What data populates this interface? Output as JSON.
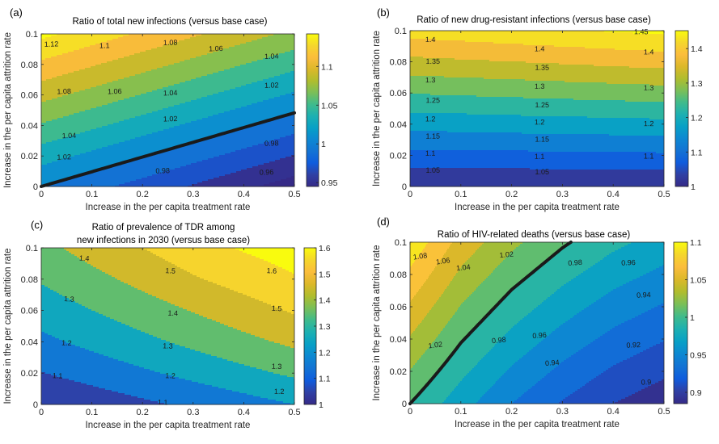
{
  "figure": {
    "panels": [
      "a",
      "b",
      "c",
      "d"
    ]
  },
  "colors": {
    "colormap_name": "parula",
    "colormap": [
      "#352a87",
      "#3040a4",
      "#0f5cdd",
      "#1373d4",
      "#0d88d2",
      "#08a0c6",
      "#1cb0b2",
      "#3fbb8c",
      "#7abf58",
      "#b0bd2e",
      "#dcb82a",
      "#fbbd3c",
      "#f5d62c",
      "#f9fb0e"
    ],
    "highlight_line": "#1a1a1a",
    "axis": "#262626"
  },
  "chart_data": [
    {
      "id": "a",
      "type": "heatmap",
      "subtype": "filled-contour",
      "panel_letter": "(a)",
      "title": "Ratio of total new infections (versus base case)",
      "title_lines": [
        "Ratio of total new infections (versus base case)"
      ],
      "xlabel": "Increase in the per capita treatment rate",
      "ylabel": "Increase in the per capita attrition rate",
      "xlim": [
        0,
        0.5
      ],
      "ylim": [
        0,
        0.1
      ],
      "xticks": [
        "0",
        "0.1",
        "0.2",
        "0.3",
        "0.4",
        "0.5"
      ],
      "yticks": [
        "0",
        "0.02",
        "0.04",
        "0.06",
        "0.08",
        "0.1"
      ],
      "grid": false,
      "x": [
        0,
        0.1,
        0.2,
        0.3,
        0.4,
        0.5
      ],
      "y": [
        0,
        0.02,
        0.04,
        0.06,
        0.08,
        0.1
      ],
      "z": [
        [
          1.0,
          0.986,
          0.972,
          0.958,
          0.944,
          0.93
        ],
        [
          1.029,
          1.015,
          1.001,
          0.987,
          0.973,
          0.959
        ],
        [
          1.058,
          1.044,
          1.03,
          1.016,
          1.002,
          0.988
        ],
        [
          1.087,
          1.073,
          1.059,
          1.045,
          1.031,
          1.017
        ],
        [
          1.116,
          1.102,
          1.088,
          1.074,
          1.06,
          1.046
        ],
        [
          1.145,
          1.131,
          1.117,
          1.103,
          1.089,
          1.075
        ]
      ],
      "levels_start": 0.9,
      "levels_step": 0.02,
      "highlight_level": 1.0,
      "clim": [
        0.945,
        1.142
      ],
      "colorbar_ticks": [
        "0.95",
        "1",
        "1.05",
        "1.1"
      ],
      "colorbar_tick_values": [
        0.95,
        1.0,
        1.05,
        1.1
      ],
      "contour_labels": [
        {
          "text": "1.12",
          "x": 0.02,
          "y": 0.093
        },
        {
          "text": "1.1",
          "x": 0.125,
          "y": 0.092
        },
        {
          "text": "1.08",
          "x": 0.255,
          "y": 0.094
        },
        {
          "text": "1.06",
          "x": 0.345,
          "y": 0.09
        },
        {
          "text": "1.04",
          "x": 0.455,
          "y": 0.085
        },
        {
          "text": "1.08",
          "x": 0.045,
          "y": 0.062
        },
        {
          "text": "1.06",
          "x": 0.145,
          "y": 0.062
        },
        {
          "text": "1.04",
          "x": 0.255,
          "y": 0.061
        },
        {
          "text": "1.02",
          "x": 0.455,
          "y": 0.066
        },
        {
          "text": "1.04",
          "x": 0.055,
          "y": 0.033
        },
        {
          "text": "1.02",
          "x": 0.255,
          "y": 0.044
        },
        {
          "text": "1.02",
          "x": 0.045,
          "y": 0.019
        },
        {
          "text": "0.98",
          "x": 0.455,
          "y": 0.028
        },
        {
          "text": "0.98",
          "x": 0.24,
          "y": 0.01
        },
        {
          "text": "0.96",
          "x": 0.445,
          "y": 0.009
        }
      ]
    },
    {
      "id": "b",
      "type": "heatmap",
      "subtype": "filled-contour",
      "panel_letter": "(b)",
      "title": "Ratio of new drug-resistant infections (versus base case)",
      "title_lines": [
        "Ratio of new drug-resistant infections (versus base case)"
      ],
      "xlabel": "Increase in the per capita treatment rate",
      "ylabel": "Increase in the per capita attrition rate",
      "xlim": [
        0,
        0.5
      ],
      "ylim": [
        0,
        0.1
      ],
      "xticks": [
        "0",
        "0.1",
        "0.2",
        "0.3",
        "0.4",
        "0.5"
      ],
      "yticks": [
        "0",
        "0.02",
        "0.04",
        "0.06",
        "0.08",
        "0.1"
      ],
      "grid": false,
      "x": [
        0,
        0.1,
        0.2,
        0.3,
        0.4,
        0.5
      ],
      "y": [
        0,
        0.02,
        0.04,
        0.06,
        0.08,
        0.1
      ],
      "z": [
        [
          1.0,
          1.0,
          1.0,
          1.0,
          1.0,
          1.0
        ],
        [
          1.084,
          1.086,
          1.087,
          1.089,
          1.091,
          1.092
        ],
        [
          1.168,
          1.171,
          1.175,
          1.178,
          1.181,
          1.185
        ],
        [
          1.252,
          1.257,
          1.262,
          1.267,
          1.272,
          1.277
        ],
        [
          1.336,
          1.343,
          1.349,
          1.356,
          1.363,
          1.37
        ],
        [
          1.42,
          1.428,
          1.437,
          1.445,
          1.454,
          1.462
        ]
      ],
      "levels_start": 1.0,
      "levels_step": 0.05,
      "highlight_level": null,
      "clim": [
        1.0,
        1.452
      ],
      "colorbar_ticks": [
        "1",
        "1.1",
        "1.2",
        "1.3",
        "1.4"
      ],
      "colorbar_tick_values": [
        1.0,
        1.1,
        1.2,
        1.3,
        1.4
      ],
      "contour_labels": [
        {
          "text": "1.45",
          "x": 0.455,
          "y": 0.099
        },
        {
          "text": "1.4",
          "x": 0.04,
          "y": 0.094
        },
        {
          "text": "1.4",
          "x": 0.255,
          "y": 0.088
        },
        {
          "text": "1.4",
          "x": 0.47,
          "y": 0.086
        },
        {
          "text": "1.35",
          "x": 0.045,
          "y": 0.08
        },
        {
          "text": "1.35",
          "x": 0.26,
          "y": 0.076
        },
        {
          "text": "1.3",
          "x": 0.04,
          "y": 0.068
        },
        {
          "text": "1.3",
          "x": 0.255,
          "y": 0.064
        },
        {
          "text": "1.3",
          "x": 0.47,
          "y": 0.063
        },
        {
          "text": "1.25",
          "x": 0.045,
          "y": 0.055
        },
        {
          "text": "1.25",
          "x": 0.26,
          "y": 0.052
        },
        {
          "text": "1.2",
          "x": 0.04,
          "y": 0.043
        },
        {
          "text": "1.2",
          "x": 0.255,
          "y": 0.041
        },
        {
          "text": "1.2",
          "x": 0.47,
          "y": 0.04
        },
        {
          "text": "1.15",
          "x": 0.045,
          "y": 0.032
        },
        {
          "text": "1.15",
          "x": 0.26,
          "y": 0.03
        },
        {
          "text": "1.1",
          "x": 0.04,
          "y": 0.021
        },
        {
          "text": "1.1",
          "x": 0.255,
          "y": 0.019
        },
        {
          "text": "1.1",
          "x": 0.47,
          "y": 0.019
        },
        {
          "text": "1.05",
          "x": 0.045,
          "y": 0.01
        },
        {
          "text": "1.05",
          "x": 0.26,
          "y": 0.009
        }
      ]
    },
    {
      "id": "c",
      "type": "heatmap",
      "subtype": "filled-contour",
      "panel_letter": "(c)",
      "title": "Ratio of prevalence of TDR among new infections in 2030 (versus base case)",
      "title_lines": [
        "Ratio of prevalence of TDR among",
        "new infections in 2030 (versus base case)"
      ],
      "xlabel": "Increase in the per capita treatment rate",
      "ylabel": "Increase in the per capita attrition rate",
      "xlim": [
        0,
        0.5
      ],
      "ylim": [
        0,
        0.1
      ],
      "xticks": [
        "0",
        "0.1",
        "0.2",
        "0.3",
        "0.4",
        "0.5"
      ],
      "yticks": [
        "0",
        "0.02",
        "0.04",
        "0.06",
        "0.08",
        "0.1"
      ],
      "grid": false,
      "x": [
        0,
        0.1,
        0.2,
        0.3,
        0.4,
        0.5
      ],
      "y": [
        0,
        0.02,
        0.04,
        0.06,
        0.08,
        0.1
      ],
      "z": [
        [
          1.0,
          1.04,
          1.08,
          1.12,
          1.16,
          1.2
        ],
        [
          1.096,
          1.14,
          1.184,
          1.229,
          1.273,
          1.318
        ],
        [
          1.177,
          1.226,
          1.275,
          1.324,
          1.373,
          1.421
        ],
        [
          1.245,
          1.299,
          1.352,
          1.405,
          1.458,
          1.511
        ],
        [
          1.31,
          1.37,
          1.43,
          1.49,
          1.54,
          1.59
        ],
        [
          1.37,
          1.44,
          1.5,
          1.56,
          1.61,
          1.65
        ]
      ],
      "levels_start": 1.0,
      "levels_step": 0.1,
      "highlight_level": null,
      "clim": [
        1.0,
        1.6
      ],
      "colorbar_ticks": [
        "1",
        "1.1",
        "1.2",
        "1.3",
        "1.4",
        "1.5",
        "1.6"
      ],
      "colorbar_tick_values": [
        1.0,
        1.1,
        1.2,
        1.3,
        1.4,
        1.5,
        1.6
      ],
      "contour_labels": [
        {
          "text": "1.4",
          "x": 0.085,
          "y": 0.093
        },
        {
          "text": "1.5",
          "x": 0.255,
          "y": 0.085
        },
        {
          "text": "1.6",
          "x": 0.455,
          "y": 0.085
        },
        {
          "text": "1.3",
          "x": 0.055,
          "y": 0.067
        },
        {
          "text": "1.4",
          "x": 0.26,
          "y": 0.058
        },
        {
          "text": "1.5",
          "x": 0.465,
          "y": 0.061
        },
        {
          "text": "1.2",
          "x": 0.05,
          "y": 0.039
        },
        {
          "text": "1.3",
          "x": 0.25,
          "y": 0.037
        },
        {
          "text": "1.3",
          "x": 0.465,
          "y": 0.024
        },
        {
          "text": "1.1",
          "x": 0.032,
          "y": 0.018
        },
        {
          "text": "1.2",
          "x": 0.255,
          "y": 0.018
        },
        {
          "text": "1.2",
          "x": 0.47,
          "y": 0.008
        },
        {
          "text": "1.1",
          "x": 0.24,
          "y": 0.001
        }
      ]
    },
    {
      "id": "d",
      "type": "heatmap",
      "subtype": "filled-contour",
      "panel_letter": "(d)",
      "title": "Ratio of HIV-related deaths (versus base case)",
      "title_lines": [
        "Ratio of HIV-related deaths (versus base case)"
      ],
      "xlabel": "Increase in the per capita treatment rate",
      "ylabel": "Increase in the per capita attrition rate",
      "xlim": [
        0,
        0.5
      ],
      "ylim": [
        0,
        0.1
      ],
      "xticks": [
        "0",
        "0.1",
        "0.2",
        "0.3",
        "0.4",
        "0.5"
      ],
      "yticks": [
        "0",
        "0.02",
        "0.04",
        "0.06",
        "0.08",
        "0.1"
      ],
      "grid": false,
      "x": [
        0,
        0.1,
        0.2,
        0.3,
        0.4,
        0.5
      ],
      "y": [
        0,
        0.02,
        0.04,
        0.06,
        0.08,
        0.1
      ],
      "z": [
        [
          1.0,
          0.968,
          0.94,
          0.918,
          0.9,
          0.887
        ],
        [
          1.019,
          0.985,
          0.957,
          0.935,
          0.917,
          0.904
        ],
        [
          1.038,
          1.002,
          0.974,
          0.952,
          0.934,
          0.921
        ],
        [
          1.057,
          1.019,
          0.991,
          0.969,
          0.951,
          0.938
        ],
        [
          1.076,
          1.036,
          1.008,
          0.986,
          0.968,
          0.955
        ],
        [
          1.095,
          1.053,
          1.025,
          1.003,
          0.985,
          0.972
        ]
      ],
      "levels_start": 0.88,
      "levels_step": 0.02,
      "highlight_level": 1.0,
      "clim": [
        0.885,
        1.1
      ],
      "colorbar_ticks": [
        "0.9",
        "0.95",
        "1",
        "1.05",
        "1.1"
      ],
      "colorbar_tick_values": [
        0.9,
        0.95,
        1.0,
        1.05,
        1.1
      ],
      "contour_labels": [
        {
          "text": "1.08",
          "x": 0.02,
          "y": 0.091
        },
        {
          "text": "1.06",
          "x": 0.065,
          "y": 0.088
        },
        {
          "text": "1.04",
          "x": 0.105,
          "y": 0.084
        },
        {
          "text": "1.02",
          "x": 0.19,
          "y": 0.092
        },
        {
          "text": "1.02",
          "x": 0.05,
          "y": 0.036
        },
        {
          "text": "0.98",
          "x": 0.175,
          "y": 0.039
        },
        {
          "text": "0.98",
          "x": 0.325,
          "y": 0.087
        },
        {
          "text": "0.96",
          "x": 0.43,
          "y": 0.087
        },
        {
          "text": "0.96",
          "x": 0.255,
          "y": 0.042
        },
        {
          "text": "0.94",
          "x": 0.46,
          "y": 0.067
        },
        {
          "text": "0.94",
          "x": 0.28,
          "y": 0.025
        },
        {
          "text": "0.92",
          "x": 0.44,
          "y": 0.036
        },
        {
          "text": "0.9",
          "x": 0.465,
          "y": 0.013
        }
      ]
    }
  ]
}
